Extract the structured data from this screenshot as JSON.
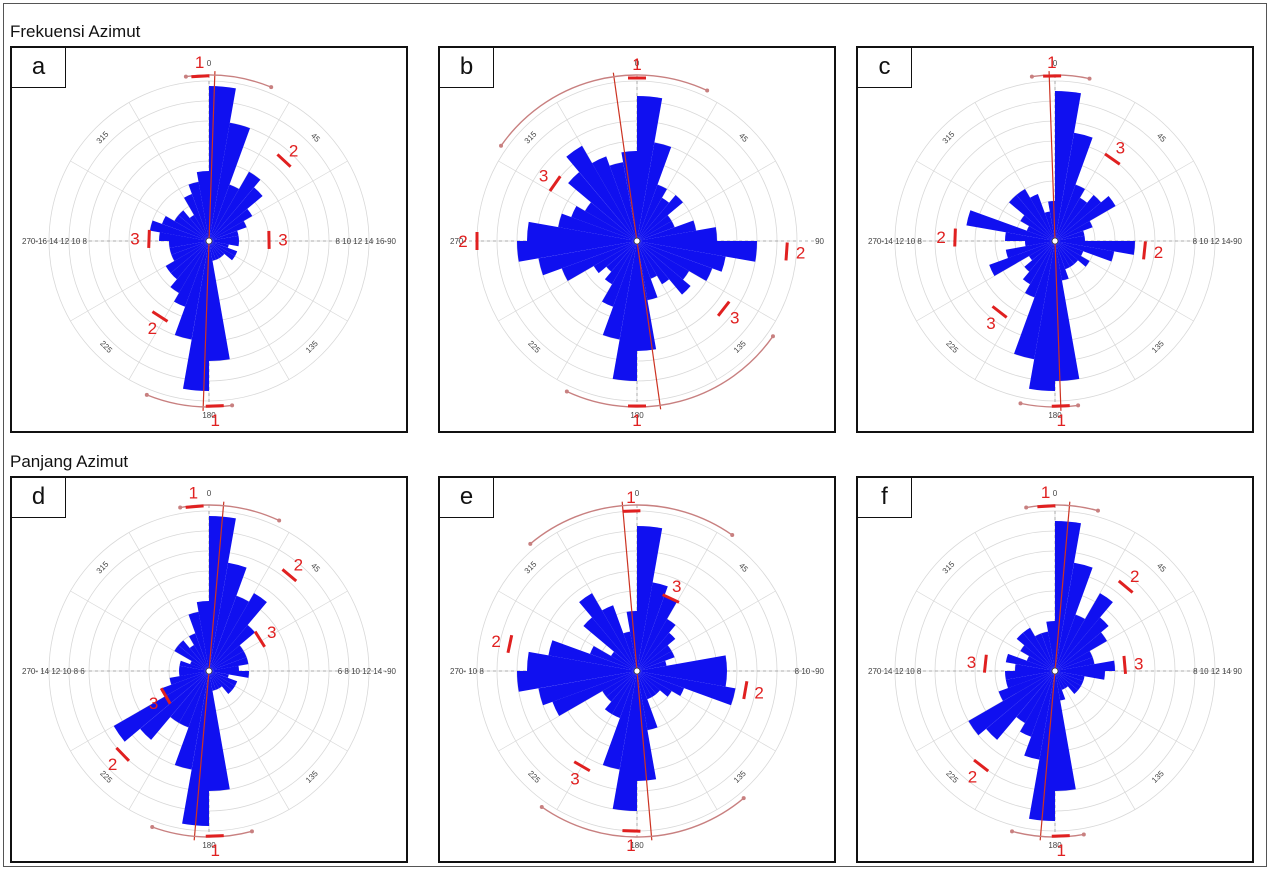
{
  "rows": [
    {
      "title": "Frekuensi Azimut"
    },
    {
      "title": "Panjang Azimut"
    }
  ],
  "colors": {
    "petal": "#1010f0",
    "mean_line": "#cc3322",
    "arc": "#c88080",
    "marker": "#e02020",
    "grid": "#d8d8d8"
  },
  "chart_data": [
    {
      "type": "rose",
      "panel": "a",
      "row": "Frekuensi Azimut",
      "bin_width_deg": 10,
      "rmax": 16,
      "scale_labels": {
        "left": "270-16 14 12 10 8",
        "right": "8 10 12 14 16-90"
      },
      "direction_labels": [
        "315",
        "45",
        "225",
        "135",
        "0",
        "180"
      ],
      "values": [
        15.5,
        12,
        6,
        8,
        7,
        5,
        4,
        3,
        3,
        3,
        2,
        3,
        3,
        2,
        2,
        2,
        2,
        12,
        15,
        10,
        7,
        6,
        5,
        5,
        4,
        4,
        4,
        5,
        6,
        5,
        4,
        4,
        3,
        5,
        6,
        7
      ],
      "mean_azimuth": 2,
      "markers": [
        {
          "label": "1",
          "az": 357,
          "r": 16.5
        },
        {
          "label": "2",
          "az": 43,
          "r": 11
        },
        {
          "label": "2",
          "az": 213,
          "r": 9
        },
        {
          "label": "3",
          "az": 272,
          "r": 6
        },
        {
          "label": "3",
          "az": 89,
          "r": 6
        },
        {
          "label": "1",
          "az": 178,
          "r": 16.5
        }
      ],
      "arcs": [
        {
          "from": 352,
          "to": 22
        },
        {
          "from": 172,
          "to": 202
        }
      ]
    },
    {
      "type": "rose",
      "panel": "b",
      "row": "Frekuensi Azimut",
      "bin_width_deg": 10,
      "rmax": 16,
      "scale_labels": {
        "left": "270-",
        "right": "90"
      },
      "direction_labels": [
        "315",
        "45",
        "225",
        "135",
        "0",
        "180"
      ],
      "values": [
        14.5,
        10,
        6,
        5,
        6,
        4,
        4,
        6,
        8,
        12,
        9,
        8,
        6,
        7,
        5,
        4,
        6,
        11,
        14,
        10,
        7,
        5,
        4,
        5,
        8,
        10,
        12,
        11,
        8,
        7,
        6,
        9,
        11,
        9,
        8,
        9
      ],
      "mean_azimuth": 352,
      "markers": [
        {
          "label": "1",
          "az": 0,
          "r": 16.3
        },
        {
          "label": "2",
          "az": 270,
          "r": 16
        },
        {
          "label": "2",
          "az": 94,
          "r": 15
        },
        {
          "label": "3",
          "az": 305,
          "r": 10
        },
        {
          "label": "3",
          "az": 128,
          "r": 11
        },
        {
          "label": "1",
          "az": 180,
          "r": 16.5
        }
      ],
      "arcs": [
        {
          "from": 305,
          "to": 25
        },
        {
          "from": 125,
          "to": 205
        }
      ]
    },
    {
      "type": "rose",
      "panel": "c",
      "row": "Frekuensi Azimut",
      "bin_width_deg": 10,
      "rmax": 16,
      "scale_labels": {
        "left": "270-14 12 10 8",
        "right": "8 10 12 14-90"
      },
      "direction_labels": [
        "315",
        "45",
        "225",
        "135",
        "0",
        "180"
      ],
      "values": [
        15,
        11,
        6,
        5,
        6,
        7,
        4,
        3,
        3,
        8,
        6,
        3,
        4,
        3,
        3,
        3,
        4,
        14,
        15,
        12,
        6,
        5,
        4,
        3,
        7,
        5,
        3,
        5,
        9,
        3,
        4,
        6,
        6,
        5,
        3,
        4
      ],
      "mean_azimuth": 358,
      "markers": [
        {
          "label": "1",
          "az": 359,
          "r": 16.5
        },
        {
          "label": "3",
          "az": 35,
          "r": 10
        },
        {
          "label": "2",
          "az": 272,
          "r": 10
        },
        {
          "label": "2",
          "az": 96,
          "r": 9
        },
        {
          "label": "3",
          "az": 218,
          "r": 9
        },
        {
          "label": "1",
          "az": 178,
          "r": 16.5
        }
      ],
      "arcs": [
        {
          "from": 352,
          "to": 12
        },
        {
          "from": 172,
          "to": 192
        }
      ]
    },
    {
      "type": "rose",
      "panel": "d",
      "row": "Panjang Azimut",
      "bin_width_deg": 10,
      "rmax": 16,
      "scale_labels": {
        "left": "270- 14 12 10 8 6",
        "right": "6 8 10 12 14 -90"
      },
      "direction_labels": [
        "315",
        "45",
        "225",
        "135",
        "0",
        "180"
      ],
      "values": [
        15.5,
        11,
        8,
        9,
        6,
        4,
        4,
        4,
        3,
        4,
        2,
        3,
        3,
        3,
        2,
        2,
        2,
        12,
        15.5,
        10,
        6,
        6,
        9,
        11,
        5,
        4,
        3,
        3,
        3,
        2,
        4,
        4,
        3,
        4,
        6,
        7
      ],
      "mean_azimuth": 5,
      "markers": [
        {
          "label": "1",
          "az": 355,
          "r": 16.5
        },
        {
          "label": "2",
          "az": 40,
          "r": 12.5
        },
        {
          "label": "3",
          "az": 58,
          "r": 6
        },
        {
          "label": "3",
          "az": 240,
          "r": 5
        },
        {
          "label": "2",
          "az": 226,
          "r": 12
        },
        {
          "label": "1",
          "az": 178,
          "r": 16.5
        }
      ],
      "arcs": [
        {
          "from": 350,
          "to": 25
        },
        {
          "from": 165,
          "to": 200
        }
      ]
    },
    {
      "type": "rose",
      "panel": "e",
      "row": "Panjang Azimut",
      "bin_width_deg": 10,
      "rmax": 16,
      "scale_labels": {
        "left": "270- 10 8",
        "right": "8 10 -90"
      },
      "direction_labels": [
        "315",
        "45",
        "225",
        "135",
        "0",
        "180"
      ],
      "values": [
        14.5,
        9,
        8,
        6,
        5,
        4,
        4,
        3,
        9,
        9,
        10,
        5,
        4,
        3,
        3,
        3,
        6,
        11,
        14,
        10,
        5,
        5,
        4,
        4,
        9,
        10,
        12,
        11,
        9,
        5,
        3,
        7,
        9,
        7,
        4,
        6
      ],
      "mean_azimuth": 355,
      "markers": [
        {
          "label": "1",
          "az": 358,
          "r": 16
        },
        {
          "label": "3",
          "az": 25,
          "r": 8
        },
        {
          "label": "2",
          "az": 282,
          "r": 13
        },
        {
          "label": "2",
          "az": 100,
          "r": 11
        },
        {
          "label": "3",
          "az": 210,
          "r": 11
        },
        {
          "label": "1",
          "az": 182,
          "r": 16
        }
      ],
      "arcs": [
        {
          "from": 320,
          "to": 35
        },
        {
          "from": 140,
          "to": 215
        }
      ]
    },
    {
      "type": "rose",
      "panel": "f",
      "row": "Panjang Azimut",
      "bin_width_deg": 10,
      "rmax": 16,
      "scale_labels": {
        "left": "270 14 12 10 8",
        "right": "8 10 12 14 90"
      },
      "direction_labels": [
        "315",
        "45",
        "225",
        "135",
        "0",
        "180"
      ],
      "values": [
        15,
        11,
        6,
        9,
        7,
        6,
        4,
        4,
        6,
        5,
        3,
        3,
        3,
        3,
        2,
        2,
        3,
        12,
        15,
        9,
        7,
        6,
        9,
        10,
        6,
        5,
        5,
        4,
        5,
        3,
        4,
        5,
        5,
        4,
        4,
        5
      ],
      "mean_azimuth": 5,
      "markers": [
        {
          "label": "1",
          "az": 357,
          "r": 16.5
        },
        {
          "label": "2",
          "az": 40,
          "r": 11
        },
        {
          "label": "3",
          "az": 85,
          "r": 7
        },
        {
          "label": "3",
          "az": 276,
          "r": 7
        },
        {
          "label": "2",
          "az": 218,
          "r": 12
        },
        {
          "label": "1",
          "az": 178,
          "r": 16.5
        }
      ],
      "arcs": [
        {
          "from": 350,
          "to": 15
        },
        {
          "from": 170,
          "to": 195
        }
      ]
    }
  ]
}
